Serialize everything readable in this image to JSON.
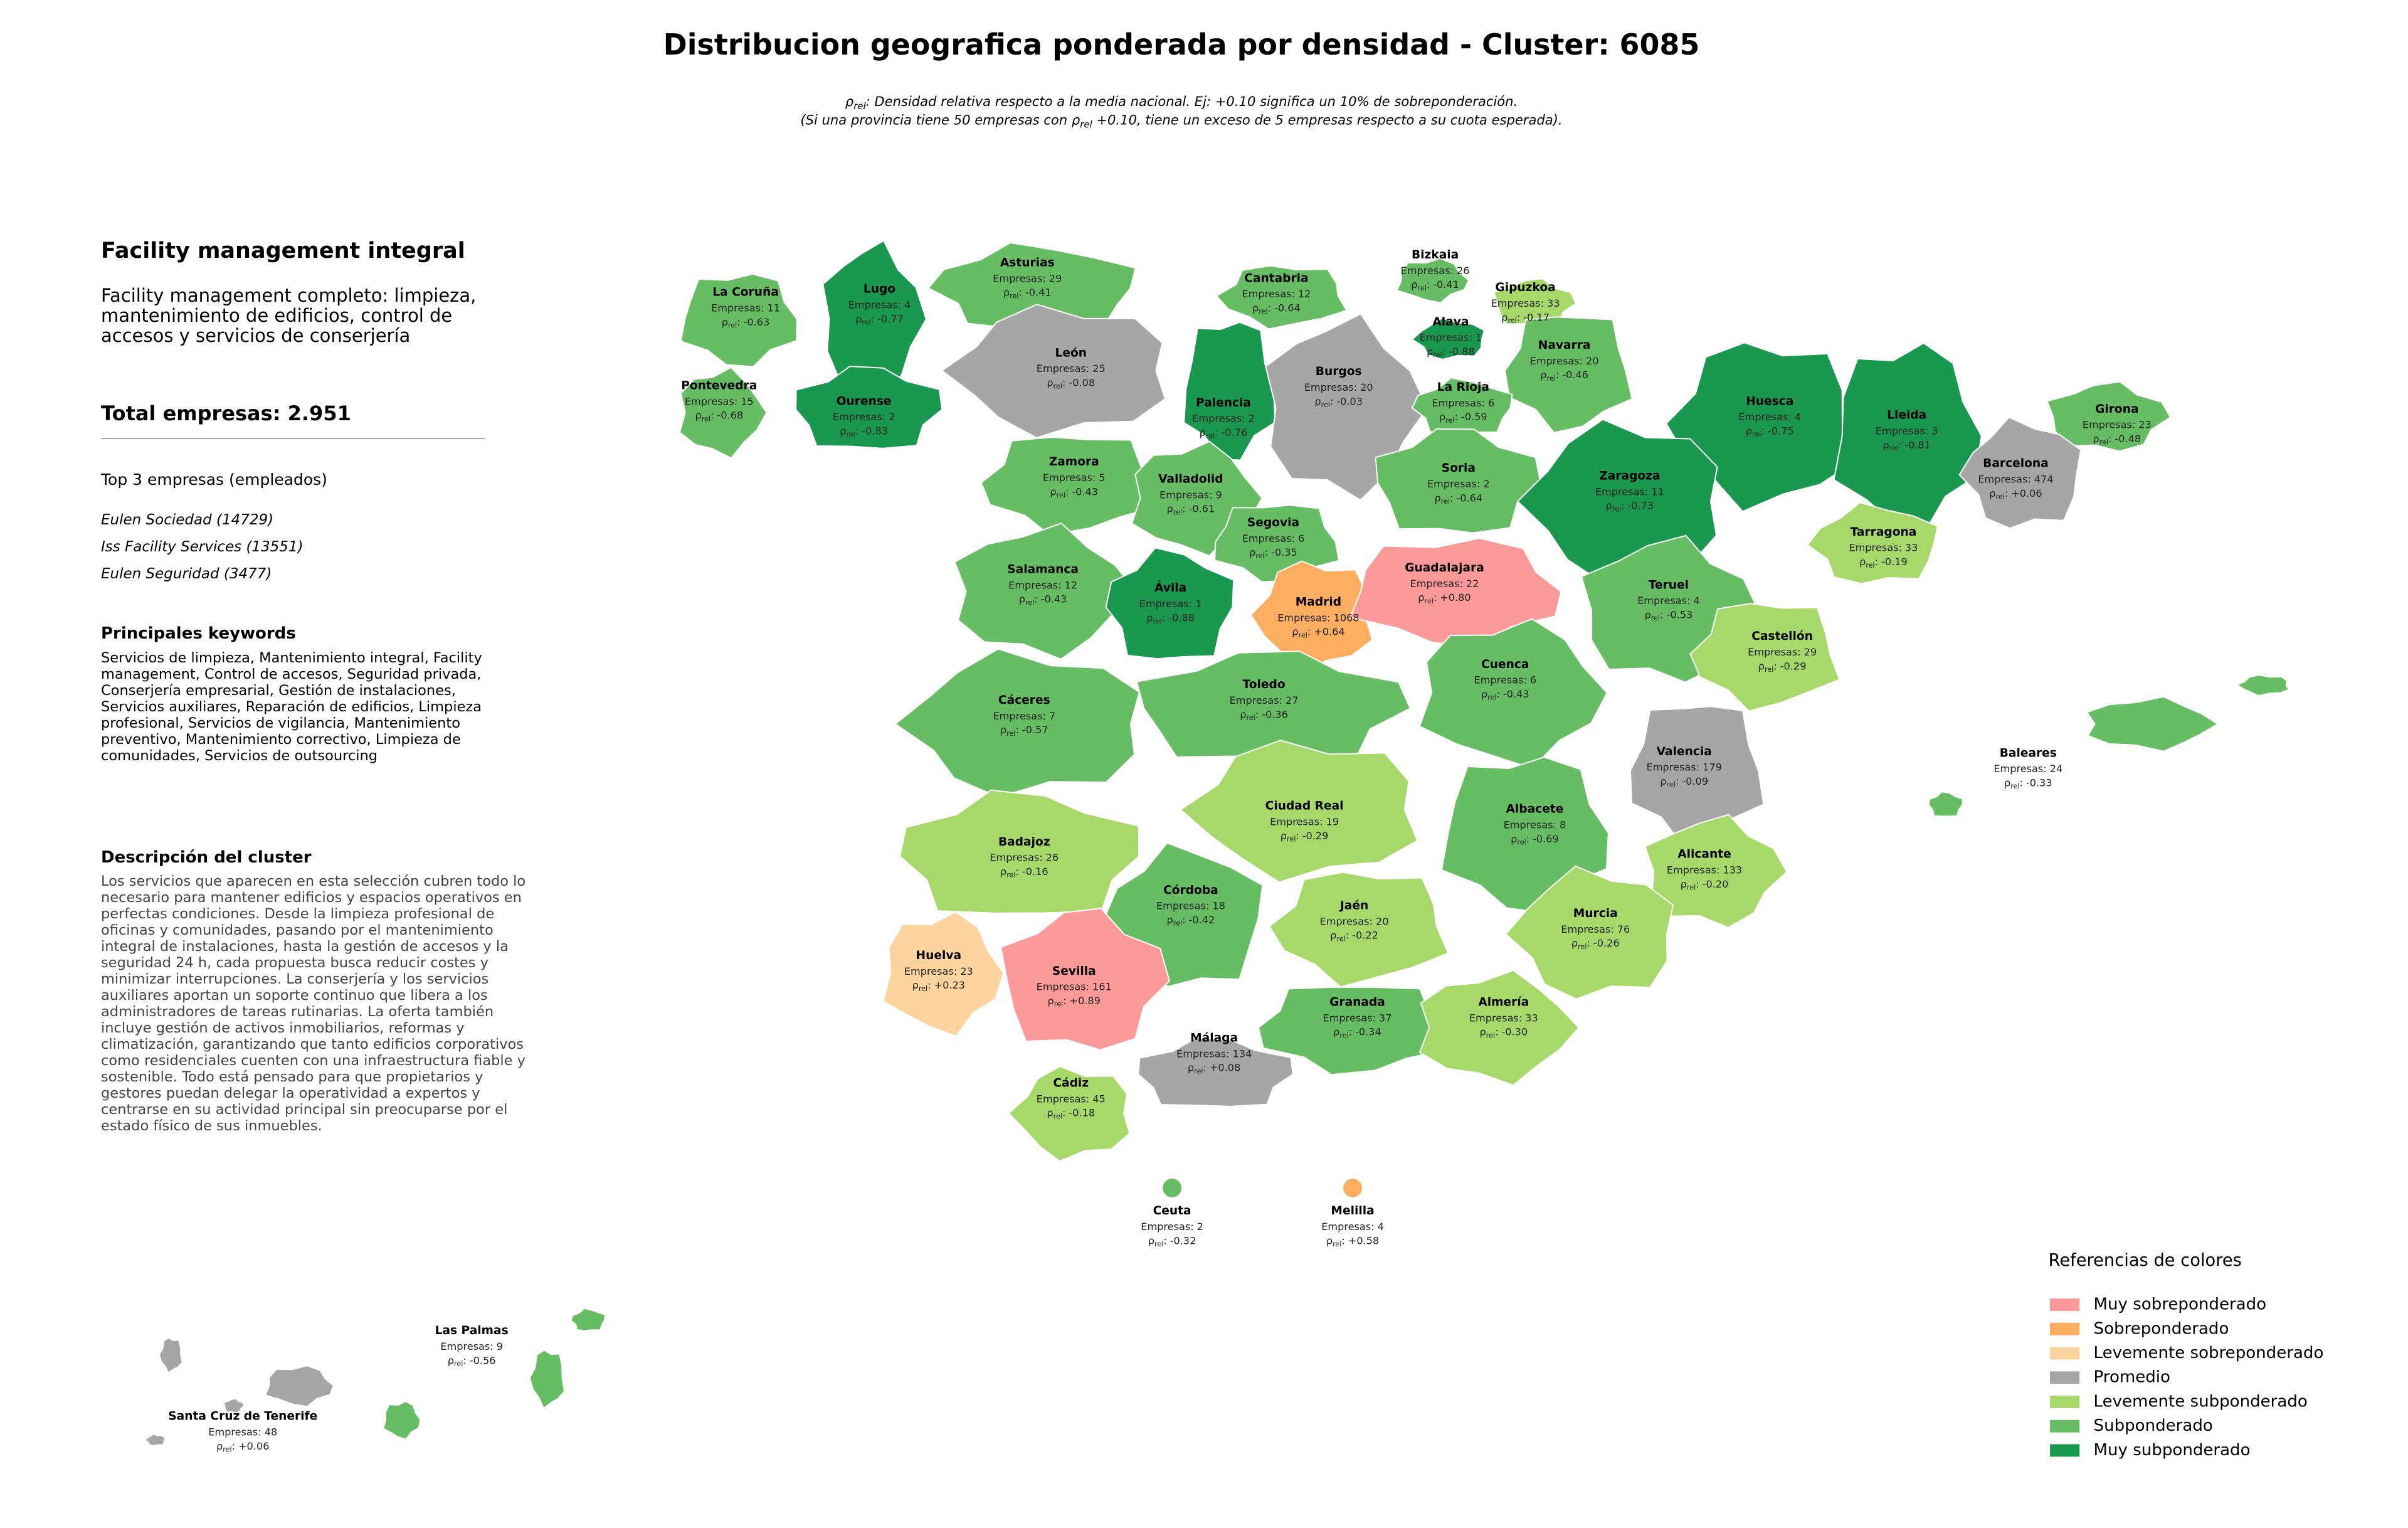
{
  "header": {
    "title": "Distribucion geografica ponderada por densidad - Cluster: 6085",
    "notes": [
      {
        "symbol": "ρ",
        "sub": "rel",
        "post": ": Densidad relativa respecto a la media nacional. Ej: +0.10 significa un 10% de sobreponderación."
      },
      {
        "pre": "(Si una provincia tiene 50 empresas con ",
        "symbol": "ρ",
        "sub": "rel",
        "post": " +0.10, tiene un exceso de 5 empresas respecto a su cuota esperada)."
      }
    ]
  },
  "panel": {
    "name": "Facility management integral",
    "summary": "Facility management completo: limpieza, mantenimiento de edificios, control de accesos y servicios de conserjería",
    "total": "Total empresas: 2.951",
    "top_title": "Top 3 empresas (empleados)",
    "top": [
      "Eulen Sociedad (14729)",
      "Iss Facility Services (13551)",
      "Eulen Seguridad (3477)"
    ],
    "keywords_title": "Principales keywords",
    "keywords": "Servicios de limpieza, Mantenimiento integral, Facility management, Control de accesos, Seguridad privada, Conserjería empresarial, Gestión de instalaciones, Servicios auxiliares, Reparación de edificios, Limpieza profesional, Servicios de vigilancia, Mantenimiento preventivo, Mantenimiento correctivo, Limpieza de comunidades, Servicios de outsourcing",
    "description_title": "Descripción del cluster",
    "description": "Los servicios que aparecen en esta selección cubren todo lo necesario para mantener edificios y espacios operativos en perfectas condiciones. Desde la limpieza profesional de oficinas y comunidades, pasando por el mantenimiento integral de instalaciones, hasta la gestión de accesos y la seguridad 24 h, cada propuesta busca reducir costes y minimizar interrupciones. La conserjería y los servicios auxiliares aportan un soporte continuo que libera a los administradores de tareas rutinarias. La oferta también incluye gestión de activos inmobiliarios, reformas y climatización, garantizando que tanto edificios corporativos como residenciales cuenten con una infraestructura fiable y sostenible. Todo está pensado para que propietarios y gestores puedan delegar la operatividad a expertos y centrarse en su actividad principal sin preocuparse por el estado físico de sus inmuebles."
  },
  "map": {
    "labels": {
      "empresas": "Empresas:",
      "symbol": "ρ",
      "sub": "rel",
      "sep": ":"
    },
    "provinces": [
      {
        "name": "La Coruña",
        "empresas": 11,
        "rho": -0.63,
        "rho_label": "-0.63",
        "color": "#66bd63"
      },
      {
        "name": "Lugo",
        "empresas": 4,
        "rho": -0.77,
        "rho_label": "-0.77",
        "color": "#1a9850"
      },
      {
        "name": "Asturias",
        "empresas": 29,
        "rho": -0.41,
        "rho_label": "-0.41",
        "color": "#66bd63"
      },
      {
        "name": "Cantabria",
        "empresas": 12,
        "rho": -0.64,
        "rho_label": "-0.64",
        "color": "#66bd63"
      },
      {
        "name": "Bizkaia",
        "empresas": 26,
        "rho": -0.41,
        "rho_label": "-0.41",
        "color": "#66bd63"
      },
      {
        "name": "Gipuzkoa",
        "empresas": 33,
        "rho": -0.17,
        "rho_label": "-0.17",
        "color": "#a6d96a"
      },
      {
        "name": "Alava",
        "empresas": 1,
        "rho": -0.88,
        "rho_label": "-0.88",
        "color": "#1a9850"
      },
      {
        "name": "Navarra",
        "empresas": 20,
        "rho": -0.46,
        "rho_label": "-0.46",
        "color": "#66bd63"
      },
      {
        "name": "Pontevedra",
        "empresas": 15,
        "rho": -0.68,
        "rho_label": "-0.68",
        "color": "#66bd63"
      },
      {
        "name": "Ourense",
        "empresas": 2,
        "rho": -0.83,
        "rho_label": "-0.83",
        "color": "#1a9850"
      },
      {
        "name": "León",
        "empresas": 25,
        "rho": -0.08,
        "rho_label": "-0.08",
        "color": "#a6a6a6"
      },
      {
        "name": "Palencia",
        "empresas": 2,
        "rho": -0.76,
        "rho_label": "-0.76",
        "color": "#1a9850"
      },
      {
        "name": "Burgos",
        "empresas": 20,
        "rho": -0.03,
        "rho_label": "-0.03",
        "color": "#a6a6a6"
      },
      {
        "name": "La Rioja",
        "empresas": 6,
        "rho": -0.59,
        "rho_label": "-0.59",
        "color": "#66bd63"
      },
      {
        "name": "Huesca",
        "empresas": 4,
        "rho": -0.75,
        "rho_label": "-0.75",
        "color": "#1a9850"
      },
      {
        "name": "Lleida",
        "empresas": 3,
        "rho": -0.81,
        "rho_label": "-0.81",
        "color": "#1a9850"
      },
      {
        "name": "Girona",
        "empresas": 23,
        "rho": -0.48,
        "rho_label": "-0.48",
        "color": "#66bd63"
      },
      {
        "name": "Barcelona",
        "empresas": 474,
        "rho": 0.06,
        "rho_label": "+0.06",
        "color": "#a6a6a6"
      },
      {
        "name": "Zamora",
        "empresas": 5,
        "rho": -0.43,
        "rho_label": "-0.43",
        "color": "#66bd63"
      },
      {
        "name": "Valladolid",
        "empresas": 9,
        "rho": -0.61,
        "rho_label": "-0.61",
        "color": "#66bd63"
      },
      {
        "name": "Soria",
        "empresas": 2,
        "rho": -0.64,
        "rho_label": "-0.64",
        "color": "#66bd63"
      },
      {
        "name": "Zaragoza",
        "empresas": 11,
        "rho": -0.73,
        "rho_label": "-0.73",
        "color": "#1a9850"
      },
      {
        "name": "Segovia",
        "empresas": 6,
        "rho": -0.35,
        "rho_label": "-0.35",
        "color": "#66bd63"
      },
      {
        "name": "Salamanca",
        "empresas": 12,
        "rho": -0.43,
        "rho_label": "-0.43",
        "color": "#66bd63"
      },
      {
        "name": "Ávila",
        "empresas": 1,
        "rho": -0.88,
        "rho_label": "-0.88",
        "color": "#1a9850"
      },
      {
        "name": "Madrid",
        "empresas": 1068,
        "rho": 0.64,
        "rho_label": "+0.64",
        "color": "#fdae61"
      },
      {
        "name": "Guadalajara",
        "empresas": 22,
        "rho": 0.8,
        "rho_label": "+0.80",
        "color": "#fb9a99"
      },
      {
        "name": "Teruel",
        "empresas": 4,
        "rho": -0.53,
        "rho_label": "-0.53",
        "color": "#66bd63"
      },
      {
        "name": "Tarragona",
        "empresas": 33,
        "rho": -0.19,
        "rho_label": "-0.19",
        "color": "#a6d96a"
      },
      {
        "name": "Castellón",
        "empresas": 29,
        "rho": -0.29,
        "rho_label": "-0.29",
        "color": "#a6d96a"
      },
      {
        "name": "Cuenca",
        "empresas": 6,
        "rho": -0.43,
        "rho_label": "-0.43",
        "color": "#66bd63"
      },
      {
        "name": "Toledo",
        "empresas": 27,
        "rho": -0.36,
        "rho_label": "-0.36",
        "color": "#66bd63"
      },
      {
        "name": "Cáceres",
        "empresas": 7,
        "rho": -0.57,
        "rho_label": "-0.57",
        "color": "#66bd63"
      },
      {
        "name": "Valencia",
        "empresas": 179,
        "rho": -0.09,
        "rho_label": "-0.09",
        "color": "#a6a6a6"
      },
      {
        "name": "Baleares",
        "empresas": 24,
        "rho": -0.33,
        "rho_label": "-0.33",
        "color": "#66bd63"
      },
      {
        "name": "Badajoz",
        "empresas": 26,
        "rho": -0.16,
        "rho_label": "-0.16",
        "color": "#a6d96a"
      },
      {
        "name": "Ciudad Real",
        "empresas": 19,
        "rho": -0.29,
        "rho_label": "-0.29",
        "color": "#a6d96a"
      },
      {
        "name": "Albacete",
        "empresas": 8,
        "rho": -0.69,
        "rho_label": "-0.69",
        "color": "#66bd63"
      },
      {
        "name": "Alicante",
        "empresas": 133,
        "rho": -0.2,
        "rho_label": "-0.20",
        "color": "#a6d96a"
      },
      {
        "name": "Córdoba",
        "empresas": 18,
        "rho": -0.42,
        "rho_label": "-0.42",
        "color": "#66bd63"
      },
      {
        "name": "Jaén",
        "empresas": 20,
        "rho": -0.22,
        "rho_label": "-0.22",
        "color": "#a6d96a"
      },
      {
        "name": "Huelva",
        "empresas": 23,
        "rho": 0.23,
        "rho_label": "+0.23",
        "color": "#fdd49e"
      },
      {
        "name": "Sevilla",
        "empresas": 161,
        "rho": 0.89,
        "rho_label": "+0.89",
        "color": "#fb9a99"
      },
      {
        "name": "Murcia",
        "empresas": 76,
        "rho": -0.26,
        "rho_label": "-0.26",
        "color": "#a6d96a"
      },
      {
        "name": "Granada",
        "empresas": 37,
        "rho": -0.34,
        "rho_label": "-0.34",
        "color": "#66bd63"
      },
      {
        "name": "Almería",
        "empresas": 33,
        "rho": -0.3,
        "rho_label": "-0.30",
        "color": "#a6d96a"
      },
      {
        "name": "Málaga",
        "empresas": 134,
        "rho": 0.08,
        "rho_label": "+0.08",
        "color": "#a6a6a6"
      },
      {
        "name": "Cádiz",
        "empresas": 45,
        "rho": -0.18,
        "rho_label": "-0.18",
        "color": "#a6d96a"
      },
      {
        "name": "Ceuta",
        "empresas": 2,
        "rho": -0.32,
        "rho_label": "-0.32",
        "color": "#66bd63"
      },
      {
        "name": "Melilla",
        "empresas": 4,
        "rho": 0.58,
        "rho_label": "+0.58",
        "color": "#fdae61"
      },
      {
        "name": "Las Palmas",
        "empresas": 9,
        "rho": -0.56,
        "rho_label": "-0.56",
        "color": "#66bd63"
      },
      {
        "name": "Santa Cruz de Tenerife",
        "empresas": 48,
        "rho": 0.06,
        "rho_label": "+0.06",
        "color": "#a6a6a6"
      }
    ]
  },
  "legend": {
    "title": "Referencias de colores",
    "items": [
      {
        "label": "Muy sobreponderado",
        "color": "#fb9a99"
      },
      {
        "label": "Sobreponderado",
        "color": "#fdae61"
      },
      {
        "label": "Levemente sobreponderado",
        "color": "#fdd49e"
      },
      {
        "label": "Promedio",
        "color": "#a6a6a6"
      },
      {
        "label": "Levemente subponderado",
        "color": "#a6d96a"
      },
      {
        "label": "Subponderado",
        "color": "#66bd63"
      },
      {
        "label": "Muy subponderado",
        "color": "#1a9850"
      }
    ]
  }
}
